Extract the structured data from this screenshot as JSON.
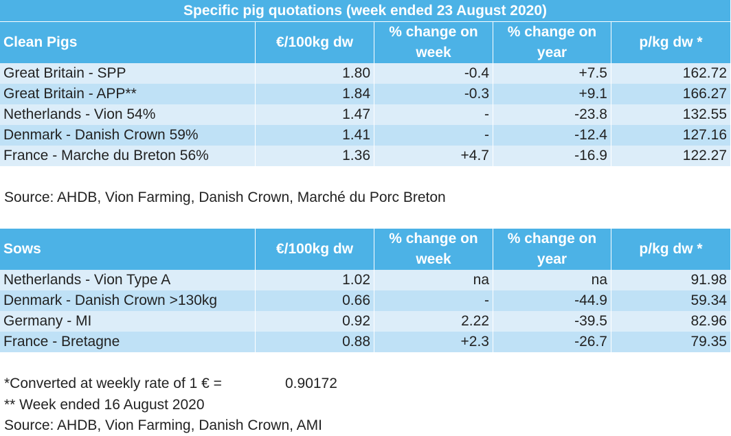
{
  "title": "Specific pig quotations (week ended 23 August 2020)",
  "clean_pigs": {
    "headers": [
      "Clean Pigs",
      "€/100kg dw",
      "% change on week",
      "% change on year",
      "p/kg dw *"
    ],
    "rows": [
      [
        "Great Britain - SPP",
        "1.80",
        "-0.4",
        "+7.5",
        "162.72"
      ],
      [
        "Great Britain - APP**",
        "1.84",
        "-0.3",
        "+9.1",
        "166.27"
      ],
      [
        "Netherlands - Vion 54%",
        "1.47",
        "-",
        "-23.8",
        "132.55"
      ],
      [
        "Denmark - Danish Crown 59%",
        "1.41",
        "-",
        "-12.4",
        "127.16"
      ],
      [
        "France - Marche du Breton 56%",
        "1.36",
        "+4.7",
        "-16.9",
        "122.27"
      ]
    ],
    "source": "Source: AHDB, Vion Farming, Danish Crown, Marché du Porc Breton"
  },
  "sows": {
    "headers": [
      "Sows",
      "€/100kg dw",
      "% change on week",
      "% change on year",
      "p/kg dw *"
    ],
    "rows": [
      [
        "Netherlands - Vion Type A",
        "1.02",
        "na",
        "na",
        "91.98"
      ],
      [
        "Denmark - Danish Crown >130kg",
        "0.66",
        "-",
        "-44.9",
        "59.34"
      ],
      [
        "Germany - MI",
        "0.92",
        "2.22",
        "-39.5",
        "82.96"
      ],
      [
        "France - Bretagne",
        "0.88",
        "+2.3",
        "-26.7",
        "79.35"
      ]
    ]
  },
  "notes": {
    "conversion_label": "*Converted at weekly rate of 1 € =",
    "conversion_rate": "0.90172",
    "week_note": "** Week ended 16 August 2020",
    "source": "Source: AHDB, Vion Farming, Danish Crown, AMI"
  }
}
